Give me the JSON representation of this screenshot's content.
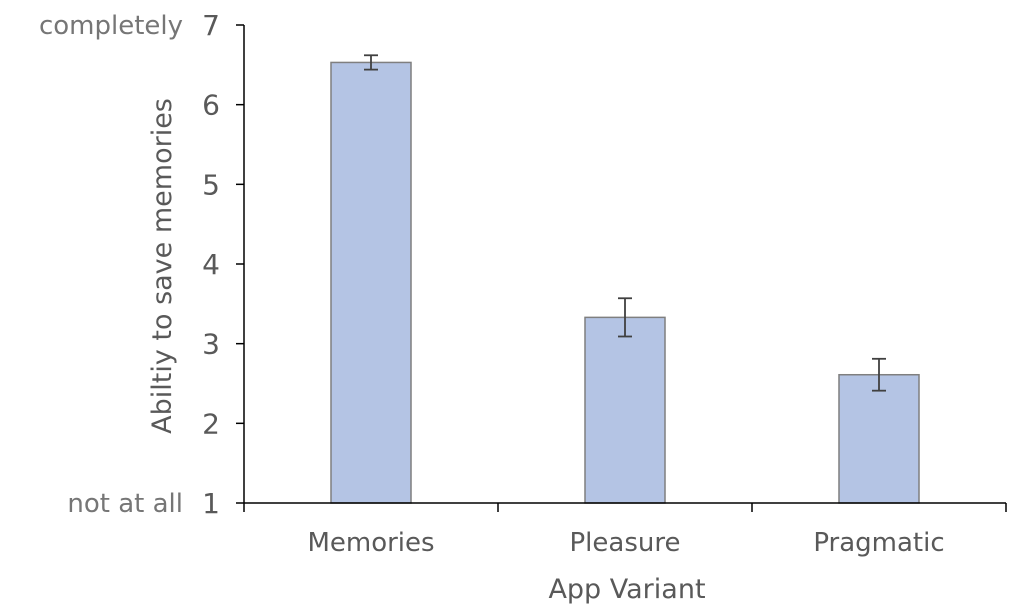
{
  "chart_data": {
    "type": "bar",
    "xlabel": "App Variant",
    "ylabel": "Abiltiy to save memories",
    "categories": [
      "Memories",
      "Pleasure",
      "Pragmatic"
    ],
    "values": [
      6.53,
      3.33,
      2.61
    ],
    "error": [
      0.09,
      0.24,
      0.2
    ],
    "ylim": [
      1,
      7
    ],
    "yticks": [
      1,
      2,
      3,
      4,
      5,
      6,
      7
    ],
    "y_anchor_labels": {
      "bottom": "not at all",
      "top": "completely"
    },
    "grid": false,
    "colors": {
      "bar_fill": "#b4c4e4",
      "bar_stroke": "#7f7f7f",
      "axis": "#000000",
      "error_bar": "#404040"
    }
  }
}
